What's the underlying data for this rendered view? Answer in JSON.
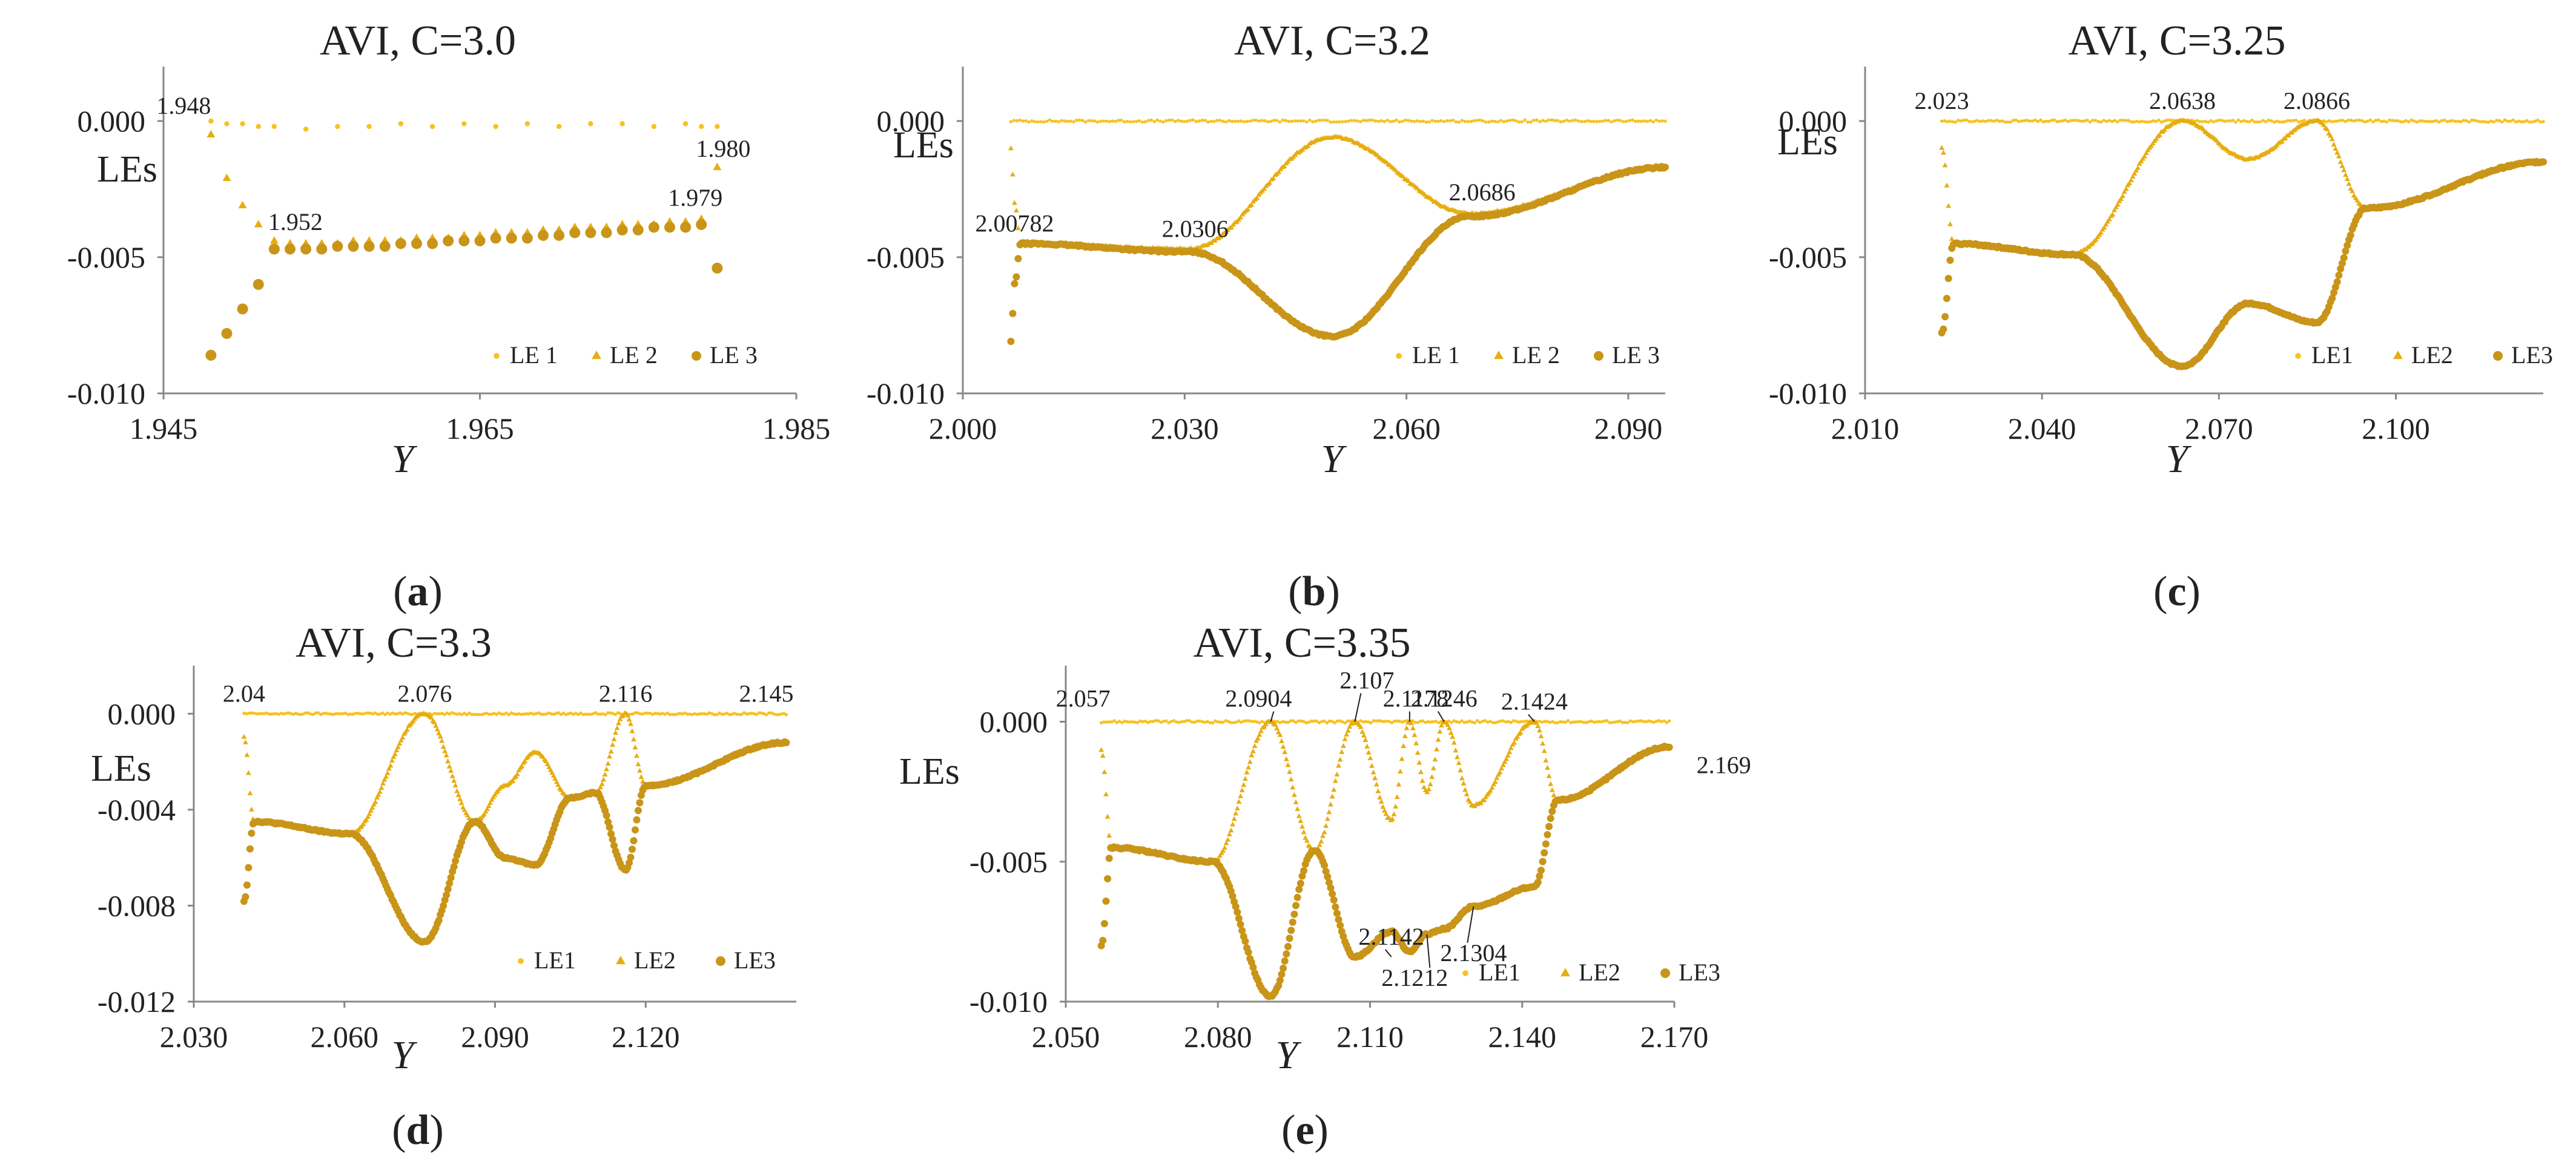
{
  "colors": {
    "le1": "#F7C21E",
    "le2": "#E7AD10",
    "le3": "#C99518",
    "axis": "#888888",
    "text": "#222222"
  },
  "chart_data": [
    {
      "type": "scatter",
      "panel_label": [
        "(",
        "a",
        ")"
      ],
      "title": "AVI, C=3.0",
      "xlabel": "Y",
      "ylabel": "LEs",
      "xlim": [
        1.945,
        1.985
      ],
      "ylim": [
        -0.01,
        0.002
      ],
      "xticks": [
        1.945,
        1.965,
        1.985
      ],
      "xtick_labels": [
        "1.945",
        "1.965",
        "1.985"
      ],
      "yticks": [
        0.0,
        -0.005,
        -0.01
      ],
      "ytick_labels": [
        "0.000",
        "-0.005",
        "-0.010"
      ],
      "legend": [
        "LE 1",
        "LE 2",
        "LE 3"
      ],
      "series": [
        {
          "name": "LE 1",
          "x": [
            1.948,
            1.949,
            1.95,
            1.951,
            1.952,
            1.954,
            1.956,
            1.958,
            1.96,
            1.962,
            1.964,
            1.966,
            1.968,
            1.97,
            1.972,
            1.974,
            1.976,
            1.978,
            1.979,
            1.98
          ],
          "y": [
            0.0,
            -0.0001,
            -0.0001,
            -0.0002,
            -0.0002,
            -0.0003,
            -0.0002,
            -0.0002,
            -0.0001,
            -0.0002,
            -0.0001,
            -0.0002,
            -0.0001,
            -0.0002,
            -0.0001,
            -0.0001,
            -0.0002,
            -0.0001,
            -0.0002,
            -0.0002
          ]
        },
        {
          "name": "LE 2",
          "x": [
            1.948,
            1.949,
            1.95,
            1.951,
            1.952,
            1.953,
            1.954,
            1.955,
            1.956,
            1.957,
            1.958,
            1.959,
            1.96,
            1.961,
            1.962,
            1.963,
            1.964,
            1.965,
            1.966,
            1.967,
            1.968,
            1.969,
            1.97,
            1.971,
            1.972,
            1.973,
            1.974,
            1.975,
            1.976,
            1.977,
            1.978,
            1.979,
            1.98
          ],
          "y": [
            -0.0005,
            -0.0021,
            -0.0031,
            -0.0038,
            -0.0044,
            -0.0045,
            -0.0045,
            -0.0045,
            -0.0045,
            -0.0044,
            -0.0044,
            -0.0044,
            -0.0044,
            -0.0043,
            -0.0043,
            -0.0043,
            -0.0042,
            -0.0042,
            -0.0041,
            -0.0041,
            -0.0041,
            -0.004,
            -0.004,
            -0.0039,
            -0.0039,
            -0.0039,
            -0.0038,
            -0.0038,
            -0.0038,
            -0.0037,
            -0.0037,
            -0.0036,
            -0.0017
          ]
        },
        {
          "name": "LE 3",
          "x": [
            1.948,
            1.949,
            1.95,
            1.951,
            1.952,
            1.953,
            1.954,
            1.955,
            1.956,
            1.957,
            1.958,
            1.959,
            1.96,
            1.961,
            1.962,
            1.963,
            1.964,
            1.965,
            1.966,
            1.967,
            1.968,
            1.969,
            1.97,
            1.971,
            1.972,
            1.973,
            1.974,
            1.975,
            1.976,
            1.977,
            1.978,
            1.979,
            1.98
          ],
          "y": [
            -0.0086,
            -0.0078,
            -0.0069,
            -0.006,
            -0.0047,
            -0.0047,
            -0.0047,
            -0.0047,
            -0.0046,
            -0.0046,
            -0.0046,
            -0.0046,
            -0.0045,
            -0.0045,
            -0.0045,
            -0.0044,
            -0.0044,
            -0.0044,
            -0.0043,
            -0.0043,
            -0.0043,
            -0.0042,
            -0.0042,
            -0.0041,
            -0.0041,
            -0.0041,
            -0.004,
            -0.004,
            -0.0039,
            -0.0039,
            -0.0039,
            -0.0038,
            -0.0054
          ]
        }
      ],
      "annotations": [
        {
          "text": "1.948",
          "x": 1.948,
          "y": 0.0,
          "anchor": "top-left"
        },
        {
          "text": "1.952",
          "x": 1.952,
          "y": -0.0044,
          "anchor": "above"
        },
        {
          "text": "1.979",
          "x": 1.979,
          "y": -0.0036,
          "anchor": "above-left"
        },
        {
          "text": "1.980",
          "x": 1.98,
          "y": -0.0002,
          "anchor": "below"
        }
      ]
    },
    {
      "type": "scatter",
      "panel_label": [
        "(",
        "b",
        ")"
      ],
      "title": "AVI, C=3.2",
      "xlabel": "Y",
      "ylabel": "LEs",
      "xlim": [
        2.0,
        2.095
      ],
      "ylim": [
        -0.01,
        0.002
      ],
      "xticks": [
        2.0,
        2.03,
        2.06,
        2.09
      ],
      "xtick_labels": [
        "2.000",
        "2.030",
        "2.060",
        "2.090"
      ],
      "yticks": [
        0.0,
        -0.005,
        -0.01
      ],
      "ytick_labels": [
        "0.000",
        "-0.005",
        "-0.010"
      ],
      "legend": [
        "LE 1",
        "LE 2",
        "LE 3"
      ],
      "series": [
        {
          "name": "LE 1",
          "x": [
            2.0065,
            2.095
          ],
          "y": [
            0.0,
            0.0
          ]
        },
        {
          "name": "LE 2",
          "x": [
            2.0065,
            2.007,
            2.00782,
            2.0306,
            2.05,
            2.0686,
            2.095
          ],
          "y": [
            -0.001,
            -0.003,
            -0.0045,
            -0.0047,
            -0.0006,
            -0.0034,
            -0.0017
          ]
        },
        {
          "name": "LE 3",
          "x": [
            2.0065,
            2.007,
            2.00782,
            2.0306,
            2.05,
            2.0686,
            2.095
          ],
          "y": [
            -0.0081,
            -0.006,
            -0.0045,
            -0.0048,
            -0.0079,
            -0.0035,
            -0.0017
          ]
        }
      ],
      "annotations": [
        {
          "text": "2.00782",
          "x": 2.00782,
          "y": -0.0045,
          "anchor": "above"
        },
        {
          "text": "2.0306",
          "x": 2.0306,
          "y": -0.0047,
          "anchor": "above"
        },
        {
          "text": "2.0686",
          "x": 2.0686,
          "y": -0.0034,
          "anchor": "above"
        }
      ]
    },
    {
      "type": "scatter",
      "panel_label": [
        "(",
        "c",
        ")"
      ],
      "title": "AVI, C=3.25",
      "xlabel": "Y",
      "ylabel": "LEs",
      "xlim": [
        2.01,
        2.125
      ],
      "ylim": [
        -0.01,
        0.002
      ],
      "xticks": [
        2.01,
        2.04,
        2.07,
        2.1
      ],
      "xtick_labels": [
        "2.010",
        "2.040",
        "2.070",
        "2.100"
      ],
      "yticks": [
        0.0,
        -0.005,
        -0.01
      ],
      "ytick_labels": [
        "0.000",
        "-0.005",
        "-0.010"
      ],
      "legend": [
        "LE1",
        "LE2",
        "LE3"
      ],
      "series": [
        {
          "name": "LE1",
          "x": [
            2.023,
            2.125
          ],
          "y": [
            0.0,
            0.0
          ]
        },
        {
          "name": "LE2",
          "x": [
            2.023,
            2.025,
            2.045,
            2.0638,
            2.075,
            2.0866,
            2.095,
            2.125
          ],
          "y": [
            -0.001,
            -0.0045,
            -0.0049,
            0.0,
            -0.0014,
            0.0,
            -0.0032,
            -0.0015
          ]
        },
        {
          "name": "LE3",
          "x": [
            2.023,
            2.025,
            2.045,
            2.0638,
            2.075,
            2.0866,
            2.095,
            2.125
          ],
          "y": [
            -0.0078,
            -0.0045,
            -0.0049,
            -0.009,
            -0.0067,
            -0.0074,
            -0.0032,
            -0.0015
          ]
        }
      ],
      "annotations": [
        {
          "text": "2.023",
          "x": 2.023,
          "y": 0.0,
          "anchor": "above"
        },
        {
          "text": "2.0638",
          "x": 2.0638,
          "y": 0.0,
          "anchor": "above"
        },
        {
          "text": "2.0866",
          "x": 2.0866,
          "y": 0.0,
          "anchor": "above"
        }
      ]
    },
    {
      "type": "scatter",
      "panel_label": [
        "(",
        "d",
        ")"
      ],
      "title": "AVI, C=3.3",
      "xlabel": "Y",
      "ylabel": "LEs",
      "xlim": [
        2.03,
        2.15
      ],
      "ylim": [
        -0.012,
        0.002
      ],
      "xticks": [
        2.03,
        2.06,
        2.09,
        2.12
      ],
      "xtick_labels": [
        "2.030",
        "2.060",
        "2.090",
        "2.120"
      ],
      "yticks": [
        0.0,
        -0.004,
        -0.008,
        -0.012
      ],
      "ytick_labels": [
        "0.000",
        "-0.004",
        "-0.008",
        "-0.012"
      ],
      "legend": [
        "LE1",
        "LE2",
        "LE3"
      ],
      "series": [
        {
          "name": "LE1",
          "x": [
            2.04,
            2.148
          ],
          "y": [
            0.0,
            0.0
          ]
        },
        {
          "name": "LE2",
          "x": [
            2.04,
            2.042,
            2.061,
            2.076,
            2.086,
            2.092,
            2.098,
            2.105,
            2.11,
            2.116,
            2.12,
            2.148
          ],
          "y": [
            -0.001,
            -0.0045,
            -0.005,
            0.0,
            -0.0045,
            -0.003,
            -0.0016,
            -0.0035,
            -0.0033,
            0.0,
            -0.003,
            -0.0012
          ]
        },
        {
          "name": "LE3",
          "x": [
            2.04,
            2.042,
            2.061,
            2.076,
            2.086,
            2.092,
            2.098,
            2.105,
            2.11,
            2.116,
            2.12,
            2.148
          ],
          "y": [
            -0.0078,
            -0.0045,
            -0.005,
            -0.0095,
            -0.0045,
            -0.006,
            -0.0063,
            -0.0035,
            -0.0033,
            -0.0065,
            -0.003,
            -0.0012
          ]
        }
      ],
      "annotations": [
        {
          "text": "2.04",
          "x": 2.04,
          "y": 0.0,
          "anchor": "above"
        },
        {
          "text": "2.076",
          "x": 2.076,
          "y": 0.0,
          "anchor": "above"
        },
        {
          "text": "2.116",
          "x": 2.116,
          "y": 0.0,
          "anchor": "above"
        },
        {
          "text": "2.145",
          "x": 2.145,
          "y": 0.0,
          "anchor": "above"
        }
      ]
    },
    {
      "type": "scatter",
      "panel_label": [
        "(",
        "e",
        ")"
      ],
      "title": "AVI, C=3.35",
      "xlabel": "Y",
      "ylabel": "LEs",
      "xlim": [
        2.05,
        2.17
      ],
      "ylim": [
        -0.01,
        0.002
      ],
      "xticks": [
        2.05,
        2.08,
        2.11,
        2.14,
        2.17
      ],
      "xtick_labels": [
        "2.050",
        "2.080",
        "2.110",
        "2.140",
        "2.170"
      ],
      "yticks": [
        0.0,
        -0.005,
        -0.01
      ],
      "ytick_labels": [
        "0.000",
        "-0.005",
        "-0.010"
      ],
      "legend": [
        "LE1",
        "LE2",
        "LE3"
      ],
      "series": [
        {
          "name": "LE1",
          "x": [
            2.057,
            2.169
          ],
          "y": [
            0.0,
            0.0
          ]
        },
        {
          "name": "LE2",
          "x": [
            2.057,
            2.059,
            2.079,
            2.0904,
            2.099,
            2.107,
            2.1142,
            2.1178,
            2.1212,
            2.1246,
            2.1304,
            2.1424,
            2.147,
            2.169
          ],
          "y": [
            -0.001,
            -0.0045,
            -0.005,
            0.0,
            -0.0046,
            0.0,
            -0.0035,
            0.0,
            -0.0025,
            0.0,
            -0.003,
            0.0,
            -0.0028,
            -0.0009
          ]
        },
        {
          "name": "LE3",
          "x": [
            2.057,
            2.059,
            2.079,
            2.0904,
            2.099,
            2.107,
            2.1142,
            2.1178,
            2.1212,
            2.1246,
            2.1304,
            2.1424,
            2.147,
            2.169
          ],
          "y": [
            -0.008,
            -0.0045,
            -0.005,
            -0.0098,
            -0.0046,
            -0.0084,
            -0.0075,
            -0.0082,
            -0.0076,
            -0.0074,
            -0.0066,
            -0.0059,
            -0.0028,
            -0.0009
          ]
        }
      ],
      "annotations": [
        {
          "text": "2.057",
          "x": 2.057,
          "y": 0.0,
          "anchor": "above"
        },
        {
          "text": "2.0904",
          "x": 2.0904,
          "y": 0.0,
          "anchor": "above-left",
          "leader": true
        },
        {
          "text": "2.107",
          "x": 2.107,
          "y": 0.0,
          "anchor": "above-left",
          "leader": true
        },
        {
          "text": "2.1178",
          "x": 2.1178,
          "y": 0.0,
          "anchor": "above",
          "leader": true
        },
        {
          "text": "2.1246",
          "x": 2.1246,
          "y": 0.0,
          "anchor": "above",
          "leader": true
        },
        {
          "text": "2.1424",
          "x": 2.1424,
          "y": 0.0,
          "anchor": "above",
          "leader": true
        },
        {
          "text": "2.169",
          "x": 2.169,
          "y": 0.0,
          "anchor": "above"
        },
        {
          "text": "2.1304",
          "x": 2.1304,
          "y": -0.0066,
          "anchor": "below-right",
          "leader": true
        },
        {
          "text": "2.1212",
          "x": 2.1212,
          "y": -0.0076,
          "anchor": "below",
          "leader": true
        },
        {
          "text": "2.1142",
          "x": 2.1142,
          "y": -0.0084,
          "anchor": "below-left",
          "leader": true
        }
      ]
    }
  ]
}
